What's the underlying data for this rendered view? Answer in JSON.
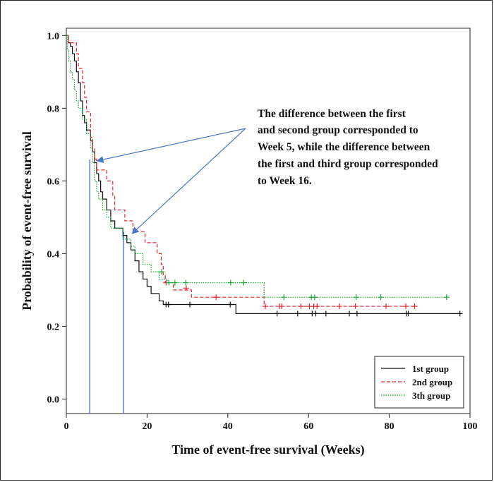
{
  "chart_data": {
    "type": "line",
    "title": "",
    "xlabel": "Time of event-free survival (Weeks)",
    "ylabel": "Probability of event-free survival",
    "xlim": [
      0,
      100
    ],
    "ylim": [
      -0.04,
      1.02
    ],
    "x_ticks": [
      "0",
      "20",
      "40",
      "60",
      "80",
      "100"
    ],
    "y_ticks": [
      "0.0",
      "0.2",
      "0.4",
      "0.6",
      "0.8",
      "1.0"
    ],
    "grid": false,
    "legend_position": "bottom-right",
    "series": [
      {
        "name": "1st group",
        "color": "#111111",
        "dash": "solid",
        "steps": [
          [
            0,
            1.0
          ],
          [
            0.5,
            0.98
          ],
          [
            1,
            0.97
          ],
          [
            1.5,
            0.95
          ],
          [
            2,
            0.93
          ],
          [
            2.5,
            0.9
          ],
          [
            3,
            0.87
          ],
          [
            3.5,
            0.82
          ],
          [
            4,
            0.78
          ],
          [
            4.5,
            0.76
          ],
          [
            5,
            0.74
          ],
          [
            6,
            0.71
          ],
          [
            6.5,
            0.68
          ],
          [
            7,
            0.65
          ],
          [
            7.5,
            0.62
          ],
          [
            8,
            0.6
          ],
          [
            8.5,
            0.57
          ],
          [
            9,
            0.55
          ],
          [
            10,
            0.52
          ],
          [
            11,
            0.49
          ],
          [
            12,
            0.47
          ],
          [
            14,
            0.45
          ],
          [
            15,
            0.43
          ],
          [
            16,
            0.41
          ],
          [
            17,
            0.38
          ],
          [
            18,
            0.35
          ],
          [
            19,
            0.33
          ],
          [
            20,
            0.31
          ],
          [
            21,
            0.29
          ],
          [
            23,
            0.27
          ],
          [
            24,
            0.26
          ],
          [
            42,
            0.235
          ],
          [
            97.5,
            0.235
          ]
        ],
        "censored": [
          [
            24.7,
            0.26
          ],
          [
            25.3,
            0.26
          ],
          [
            30.6,
            0.26
          ],
          [
            40.6,
            0.26
          ],
          [
            52.2,
            0.235
          ],
          [
            57.3,
            0.235
          ],
          [
            60.9,
            0.235
          ],
          [
            61.8,
            0.235
          ],
          [
            64.3,
            0.235
          ],
          [
            70.1,
            0.235
          ],
          [
            72,
            0.235
          ],
          [
            84.3,
            0.235
          ],
          [
            84.7,
            0.235
          ],
          [
            97.5,
            0.235
          ]
        ]
      },
      {
        "name": "2nd group",
        "color": "#e8232a",
        "dash": "dashed",
        "steps": [
          [
            0,
            1.0
          ],
          [
            0.5,
            0.98
          ],
          [
            2.5,
            0.95
          ],
          [
            3,
            0.91
          ],
          [
            4,
            0.87
          ],
          [
            4.5,
            0.83
          ],
          [
            5,
            0.79
          ],
          [
            6,
            0.72
          ],
          [
            6.5,
            0.69
          ],
          [
            7,
            0.66
          ],
          [
            7.5,
            0.63
          ],
          [
            10,
            0.6
          ],
          [
            11.5,
            0.56
          ],
          [
            12,
            0.52
          ],
          [
            14.5,
            0.49
          ],
          [
            16.5,
            0.46
          ],
          [
            19.5,
            0.43
          ],
          [
            22.5,
            0.4
          ],
          [
            23.5,
            0.37
          ],
          [
            24,
            0.34
          ],
          [
            24.5,
            0.32
          ],
          [
            26.5,
            0.3
          ],
          [
            31,
            0.28
          ],
          [
            49,
            0.255
          ],
          [
            86.3,
            0.255
          ]
        ],
        "censored": [
          [
            24.7,
            0.32
          ],
          [
            29.7,
            0.305
          ],
          [
            37.1,
            0.28
          ],
          [
            49.3,
            0.255
          ],
          [
            52.8,
            0.255
          ],
          [
            53.4,
            0.255
          ],
          [
            58.1,
            0.255
          ],
          [
            60.2,
            0.255
          ],
          [
            61.3,
            0.255
          ],
          [
            62.1,
            0.255
          ],
          [
            67.6,
            0.255
          ],
          [
            71.6,
            0.255
          ],
          [
            79.2,
            0.255
          ],
          [
            84.1,
            0.255
          ],
          [
            86.3,
            0.255
          ]
        ]
      },
      {
        "name": "3th group",
        "color": "#19a83a",
        "dash": "dotted",
        "steps": [
          [
            0,
            1.0
          ],
          [
            0.3,
            0.96
          ],
          [
            0.6,
            0.93
          ],
          [
            1,
            0.9
          ],
          [
            1.5,
            0.88
          ],
          [
            2,
            0.85
          ],
          [
            2.5,
            0.82
          ],
          [
            3,
            0.8
          ],
          [
            4,
            0.77
          ],
          [
            5,
            0.73
          ],
          [
            6,
            0.69
          ],
          [
            6.5,
            0.65
          ],
          [
            7,
            0.6
          ],
          [
            7.5,
            0.57
          ],
          [
            8,
            0.55
          ],
          [
            9,
            0.52
          ],
          [
            10,
            0.5
          ],
          [
            11,
            0.47
          ],
          [
            14,
            0.44
          ],
          [
            16,
            0.42
          ],
          [
            17,
            0.4
          ],
          [
            19,
            0.37
          ],
          [
            21,
            0.35
          ],
          [
            23,
            0.33
          ],
          [
            25,
            0.32
          ],
          [
            49,
            0.28
          ],
          [
            94.5,
            0.28
          ]
        ],
        "censored": [
          [
            23.6,
            0.35
          ],
          [
            25.4,
            0.32
          ],
          [
            26.9,
            0.32
          ],
          [
            29.6,
            0.32
          ],
          [
            40.7,
            0.32
          ],
          [
            43.9,
            0.32
          ],
          [
            53.9,
            0.28
          ],
          [
            60.7,
            0.28
          ],
          [
            61.5,
            0.28
          ],
          [
            71.8,
            0.28
          ],
          [
            77.9,
            0.28
          ],
          [
            94.2,
            0.28
          ]
        ]
      }
    ],
    "annotation": {
      "lines": [
        "The difference between the first",
        "and second group corresponded to",
        "Week 5, while the difference between",
        "the first and third group corresponded",
        "to Week 16."
      ],
      "color": "#4a78c8",
      "vertical_lines_x": [
        5.8,
        14.2
      ],
      "arrow_targets": [
        [
          7.6,
          0.655
        ],
        [
          16.3,
          0.455
        ]
      ]
    }
  }
}
